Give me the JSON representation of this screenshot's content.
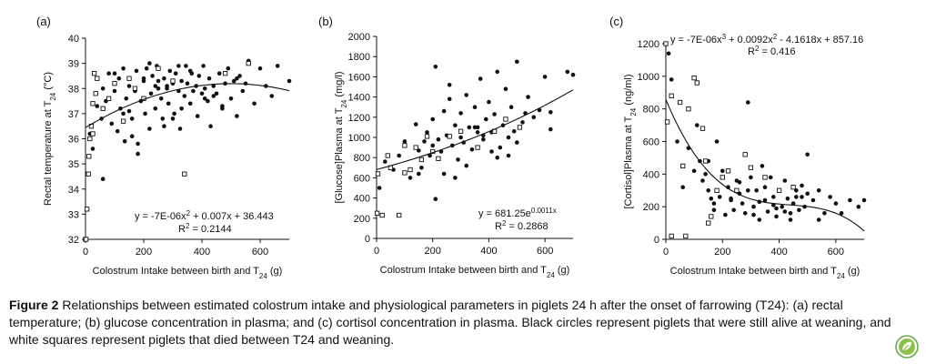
{
  "caption": {
    "label": "Figure 2",
    "text": "Relationships between estimated colostrum intake and physiological parameters in piglets 24 h after the onset of farrowing (T24): (a) rectal temperature; (b) glucose concentration in plasma; and (c) cortisol concentration in plasma. Black circles represent piglets that were still alive at weaning, and white squares represent piglets that died between T24 and weaning."
  },
  "logo_icon": "leaf-badge-icon",
  "chart_data": [
    {
      "type": "scatter",
      "panel": "(a)",
      "xlabel": "Colostrum Intake between birth and T24 (g)",
      "ylabel": "Rectal temperature at T24 (°C)",
      "xlim": [
        0,
        700
      ],
      "ylim": [
        32,
        40
      ],
      "xticks": [
        0,
        200,
        400,
        600
      ],
      "yticks": [
        32,
        33,
        34,
        35,
        36,
        37,
        38,
        39,
        40
      ],
      "equation": "y = -7E-06x2 + 0.007x + 36.443",
      "r2": "R2 = 0.2144",
      "trend": {
        "kind": "poly",
        "coef": [
          36.443,
          0.007,
          -7e-06,
          0
        ],
        "xrange": [
          0,
          700
        ]
      },
      "legend": "none",
      "grid": false,
      "series": [
        {
          "marker": "circle",
          "x": [
            15,
            25,
            40,
            55,
            60,
            70,
            80,
            90,
            100,
            110,
            115,
            120,
            130,
            135,
            140,
            150,
            160,
            170,
            175,
            180,
            190,
            200,
            205,
            210,
            220,
            225,
            230,
            240,
            245,
            250,
            260,
            265,
            270,
            280,
            285,
            290,
            300,
            305,
            310,
            320,
            325,
            330,
            340,
            345,
            350,
            360,
            365,
            370,
            380,
            385,
            390,
            400,
            405,
            410,
            420,
            425,
            430,
            440,
            450,
            460,
            470,
            480,
            490,
            500,
            510,
            520,
            530,
            540,
            550,
            560,
            580,
            600,
            620,
            640,
            660,
            700,
            150,
            220,
            300,
            410,
            250,
            180,
            330,
            270,
            360,
            200,
            130,
            470,
            520,
            100,
            60,
            240,
            320,
            440,
            160,
            280
          ],
          "y": [
            36.2,
            35.6,
            37.3,
            36.8,
            38.0,
            37.5,
            38.6,
            36.6,
            37.9,
            36.3,
            38.4,
            37.2,
            38.8,
            35.9,
            37.6,
            38.1,
            36.8,
            37.9,
            38.7,
            35.4,
            37.5,
            38.3,
            37.0,
            38.8,
            36.4,
            37.8,
            38.5,
            37.2,
            38.9,
            38.0,
            37.6,
            36.8,
            38.4,
            38.1,
            37.4,
            38.7,
            38.2,
            37.0,
            38.6,
            37.9,
            36.4,
            38.3,
            37.7,
            38.9,
            38.2,
            37.4,
            38.6,
            37.9,
            38.1,
            36.9,
            38.5,
            37.8,
            38.9,
            38.0,
            37.5,
            38.4,
            36.5,
            38.1,
            37.8,
            38.6,
            37.3,
            38.2,
            38.8,
            37.6,
            38.3,
            36.9,
            38.5,
            37.9,
            38.2,
            39.1,
            37.4,
            38.8,
            38.1,
            37.7,
            38.9,
            38.3,
            37.1,
            39.0,
            36.8,
            37.6,
            38.3,
            35.8,
            37.2,
            36.5,
            38.7,
            38.4,
            37.0,
            37.2,
            38.4,
            38.6,
            34.4,
            38.1,
            38.9,
            37.7,
            36.1,
            38.0
          ]
        },
        {
          "marker": "square",
          "x": [
            0,
            5,
            10,
            12,
            15,
            20,
            25,
            30,
            40,
            60,
            80,
            100,
            130,
            150,
            170,
            200,
            250,
            300,
            340,
            480,
            560,
            25,
            35,
            2
          ],
          "y": [
            32.0,
            33.2,
            34.6,
            35.3,
            36.0,
            36.5,
            37.4,
            38.6,
            38.4,
            37.2,
            37.6,
            38.2,
            36.7,
            38.4,
            38.0,
            37.6,
            38.8,
            38.3,
            34.6,
            38.6,
            39.0,
            36.2,
            37.8,
            32.0
          ]
        }
      ]
    },
    {
      "type": "scatter",
      "panel": "(b)",
      "xlabel": "Colostrum Intake between birth and T24 (g)",
      "ylabel": "[Glucose]Plasma at T24 (mg/l)",
      "xlim": [
        0,
        700
      ],
      "ylim": [
        0,
        2000
      ],
      "xticks": [
        0,
        200,
        400,
        600
      ],
      "yticks": [
        0,
        200,
        400,
        600,
        800,
        1000,
        1200,
        1400,
        1600,
        1800,
        2000
      ],
      "equation": "y = 681.25e0.0011x",
      "r2": "R2 = 0.2868",
      "trend": {
        "kind": "exp",
        "a": 681.25,
        "b": 0.0011,
        "xrange": [
          0,
          700
        ]
      },
      "legend": "none",
      "grid": false,
      "series": [
        {
          "marker": "circle",
          "x": [
            10,
            30,
            60,
            80,
            100,
            120,
            140,
            150,
            160,
            170,
            180,
            190,
            200,
            210,
            220,
            230,
            240,
            250,
            260,
            270,
            280,
            290,
            300,
            310,
            320,
            330,
            340,
            350,
            360,
            370,
            380,
            390,
            400,
            410,
            420,
            430,
            440,
            450,
            460,
            470,
            480,
            490,
            500,
            520,
            540,
            560,
            580,
            600,
            620,
            680,
            700,
            210,
            320,
            410,
            500,
            240,
            350,
            430,
            150,
            280,
            380,
            470,
            530,
            260,
            300,
            360,
            200,
            620
          ],
          "y": [
            500,
            760,
            680,
            820,
            960,
            600,
            1130,
            870,
            700,
            960,
            1050,
            820,
            1180,
            390,
            980,
            860,
            1260,
            1020,
            1520,
            920,
            1120,
            780,
            1240,
            950,
            1420,
            1100,
            880,
            1300,
            1050,
            1580,
            980,
            1180,
            1350,
            1050,
            1230,
            1650,
            900,
            1120,
            1480,
            1000,
            1300,
            1060,
            1750,
            1150,
            1400,
            1200,
            1270,
            1600,
            1080,
            1650,
            1620,
            1700,
            720,
            860,
            950,
            640,
            1100,
            800,
            640,
            600,
            1020,
            820,
            1240,
            1380,
            1000,
            1100,
            920,
            1250
          ]
        },
        {
          "marker": "square",
          "x": [
            2,
            5,
            20,
            50,
            80,
            100,
            120,
            140,
            160,
            180,
            200,
            220,
            260,
            300,
            360,
            420,
            460,
            510,
            100,
            40
          ],
          "y": [
            250,
            640,
            230,
            700,
            230,
            920,
            680,
            900,
            780,
            1010,
            860,
            790,
            1010,
            1060,
            900,
            1060,
            1180,
            1100,
            650,
            820
          ]
        }
      ]
    },
    {
      "type": "scatter",
      "panel": "(c)",
      "xlabel": "Colostrum Intake between birth and T24 (g)",
      "ylabel": "[Cortisol]Plasma at T24 (ng/ml)",
      "xlim": [
        0,
        700
      ],
      "ylim": [
        0,
        1200
      ],
      "xticks": [
        0,
        200,
        400,
        600
      ],
      "yticks": [
        0,
        200,
        400,
        600,
        800,
        1000,
        1200
      ],
      "equation": "y = -7E-06x3 + 0.0092x2 - 4.1618x + 857.16",
      "r2": "R2 = 0.416",
      "trend": {
        "kind": "poly",
        "coef": [
          857.16,
          -4.1618,
          0.0092,
          -7e-06
        ],
        "xrange": [
          0,
          700
        ]
      },
      "legend": "none",
      "grid": false,
      "series": [
        {
          "marker": "circle",
          "x": [
            10,
            20,
            40,
            60,
            80,
            100,
            110,
            120,
            130,
            140,
            150,
            160,
            170,
            180,
            190,
            200,
            210,
            220,
            230,
            240,
            250,
            260,
            270,
            280,
            290,
            300,
            310,
            320,
            330,
            340,
            350,
            360,
            370,
            380,
            390,
            400,
            410,
            420,
            430,
            440,
            450,
            460,
            470,
            480,
            490,
            500,
            520,
            540,
            560,
            580,
            600,
            620,
            650,
            680,
            700,
            230,
            260,
            310,
            350,
            380,
            420,
            460,
            500,
            170,
            290,
            330,
            390,
            440,
            480,
            540,
            150,
            200
          ],
          "y": [
            1140,
            980,
            600,
            320,
            560,
            420,
            700,
            480,
            360,
            400,
            300,
            250,
            180,
            600,
            260,
            420,
            150,
            320,
            240,
            180,
            360,
            280,
            220,
            160,
            840,
            380,
            200,
            300,
            120,
            450,
            240,
            170,
            380,
            260,
            140,
            300,
            200,
            360,
            250,
            120,
            220,
            300,
            180,
            260,
            200,
            520,
            240,
            300,
            160,
            260,
            220,
            160,
            240,
            200,
            240,
            250,
            350,
            150,
            320,
            210,
            170,
            260,
            280,
            220,
            300,
            230,
            190,
            160,
            330,
            120,
            480,
            380
          ]
        },
        {
          "marker": "square",
          "x": [
            0,
            5,
            20,
            50,
            60,
            80,
            100,
            110,
            130,
            140,
            150,
            160,
            180,
            200,
            220,
            250,
            280,
            300,
            350,
            400,
            450,
            20,
            70
          ],
          "y": [
            1200,
            720,
            880,
            840,
            450,
            800,
            990,
            960,
            680,
            480,
            100,
            140,
            300,
            380,
            420,
            300,
            520,
            440,
            380,
            300,
            320,
            20,
            20
          ]
        }
      ]
    }
  ]
}
